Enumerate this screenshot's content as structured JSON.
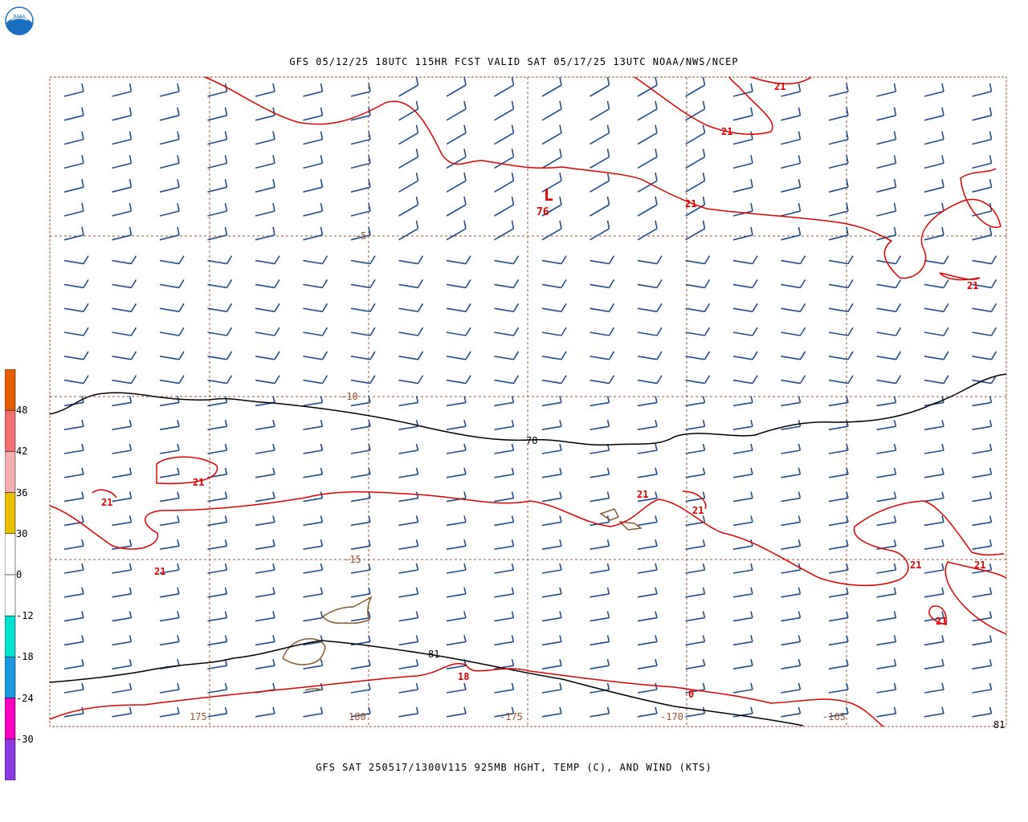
{
  "header": {
    "logo_text": "NOAA",
    "title": "GFS 05/12/25 18UTC 115HR FCST VALID SAT 05/17/25 13UTC NOAA/NWS/NCEP"
  },
  "footer": {
    "title": "GFS SAT 250517/1300V115 925MB HGHT, TEMP (C), AND WIND (KTS)"
  },
  "map": {
    "longitude_labels": [
      "175",
      "180",
      "-175",
      "-170",
      "-165"
    ],
    "latitude_labels": [
      "-5",
      "-10",
      "-15"
    ],
    "low_center": {
      "symbol": "L",
      "value": "76"
    },
    "height_contour_labels": [
      "78",
      "81",
      "81"
    ],
    "temperature_contour_labels": [
      "21",
      "21",
      "21",
      "21",
      "21",
      "21",
      "21",
      "21",
      "21",
      "21",
      "21",
      "21",
      "18",
      "0"
    ],
    "colors": {
      "wind_barb": "#1f4e8c",
      "temp_contour": "#e00000",
      "height_contour": "#000000",
      "coastline": "#8b5a2b",
      "grid": "#a0522d"
    }
  },
  "colorbar": {
    "labels": [
      "48",
      "42",
      "36",
      "30",
      "0",
      "-12",
      "-18",
      "-24",
      "-30"
    ],
    "colors": [
      "#e65c00",
      "#f07070",
      "#f4b0b0",
      "#e8c000",
      "#ffffff",
      "#ffffff",
      "#00e0d0",
      "#1a9be0",
      "#ff00c0",
      "#8a3ae0"
    ]
  }
}
